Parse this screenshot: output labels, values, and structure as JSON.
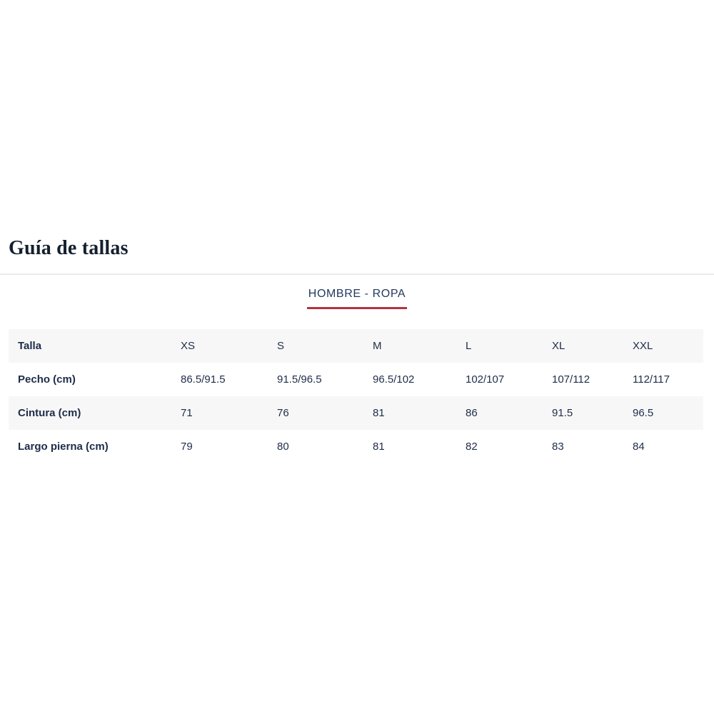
{
  "page": {
    "title": "Guía de tallas"
  },
  "tabs": {
    "active": {
      "label": "HOMBRE - ROPA"
    }
  },
  "colors": {
    "accent_red": "#b5323f",
    "navy_text": "#1e2c49",
    "title_text": "#14202f",
    "row_stripe": "#f7f7f7",
    "divider": "#ececec"
  },
  "size_table": {
    "columns": [
      "Talla",
      "XS",
      "S",
      "M",
      "L",
      "XL",
      "XXL"
    ],
    "rows": [
      {
        "label": "Pecho (cm)",
        "values": [
          "86.5/91.5",
          "91.5/96.5",
          "96.5/102",
          "102/107",
          "107/112",
          "112/117"
        ]
      },
      {
        "label": "Cintura (cm)",
        "values": [
          "71",
          "76",
          "81",
          "86",
          "91.5",
          "96.5"
        ]
      },
      {
        "label": "Largo pierna (cm)",
        "values": [
          "79",
          "80",
          "81",
          "82",
          "83",
          "84"
        ]
      }
    ]
  }
}
